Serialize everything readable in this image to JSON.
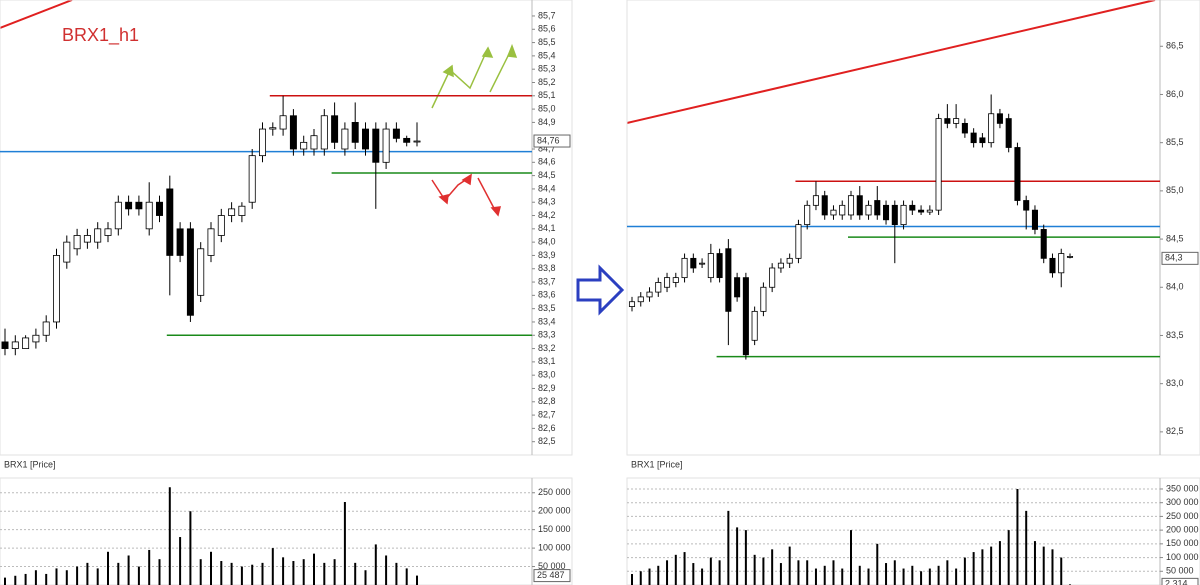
{
  "chart_data": [
    {
      "type": "candlestick",
      "title": "BRX1_h1",
      "label": "BRX1 [Price]",
      "open": [
        83.25,
        83.2,
        83.2,
        83.25,
        83.3,
        83.4,
        83.85,
        83.95,
        84.0,
        84.0,
        84.05,
        84.1,
        84.3,
        84.3,
        84.1,
        84.3,
        84.4,
        84.1,
        84.1,
        83.6,
        83.9,
        84.05,
        84.2,
        84.2,
        84.3,
        84.65,
        84.85,
        84.85,
        84.95,
        84.7,
        84.7,
        84.7,
        84.95,
        84.7,
        84.9,
        84.85,
        84.85,
        84.6,
        84.85,
        84.78,
        84.76
      ],
      "high": [
        83.35,
        83.3,
        83.3,
        83.35,
        83.45,
        83.95,
        84.05,
        84.1,
        84.1,
        84.15,
        84.15,
        84.35,
        84.35,
        84.35,
        84.45,
        84.35,
        84.5,
        84.15,
        84.15,
        84.0,
        84.15,
        84.25,
        84.3,
        84.3,
        84.7,
        84.9,
        84.9,
        85.1,
        85.0,
        84.8,
        84.85,
        85.0,
        85.05,
        84.9,
        85.05,
        84.9,
        84.9,
        84.9,
        84.9,
        84.8,
        84.9
      ],
      "low": [
        83.15,
        83.15,
        83.2,
        83.2,
        83.25,
        83.35,
        83.8,
        83.9,
        83.95,
        83.95,
        84.0,
        84.05,
        84.2,
        84.2,
        84.05,
        84.15,
        83.6,
        83.85,
        83.4,
        83.55,
        83.85,
        84.0,
        84.15,
        84.15,
        84.25,
        84.6,
        84.8,
        84.8,
        84.65,
        84.65,
        84.65,
        84.65,
        84.7,
        84.65,
        84.7,
        84.65,
        84.25,
        84.55,
        84.75,
        84.72,
        84.72
      ],
      "close": [
        83.2,
        83.25,
        83.28,
        83.3,
        83.4,
        83.9,
        84.0,
        84.05,
        84.05,
        84.1,
        84.1,
        84.3,
        84.25,
        84.25,
        84.3,
        84.2,
        83.9,
        83.9,
        83.45,
        83.95,
        84.1,
        84.2,
        84.25,
        84.27,
        84.65,
        84.85,
        84.86,
        84.95,
        84.7,
        84.75,
        84.8,
        84.95,
        84.75,
        84.85,
        84.75,
        84.7,
        84.6,
        84.85,
        84.78,
        84.75,
        84.76
      ],
      "ylim": [
        82.4,
        85.82
      ],
      "yticks": [
        {
          "value": 82.5,
          "label": "82,5"
        },
        {
          "value": 82.6,
          "label": "82,6"
        },
        {
          "value": 82.7,
          "label": "82,7"
        },
        {
          "value": 82.8,
          "label": "82,8"
        },
        {
          "value": 82.9,
          "label": "82,9"
        },
        {
          "value": 83.0,
          "label": "83,0"
        },
        {
          "value": 83.1,
          "label": "83,1"
        },
        {
          "value": 83.2,
          "label": "83,2"
        },
        {
          "value": 83.3,
          "label": "83,3"
        },
        {
          "value": 83.4,
          "label": "83,4"
        },
        {
          "value": 83.5,
          "label": "83,5"
        },
        {
          "value": 83.6,
          "label": "83,6"
        },
        {
          "value": 83.7,
          "label": "83,7"
        },
        {
          "value": 83.8,
          "label": "83,8"
        },
        {
          "value": 83.9,
          "label": "83,9"
        },
        {
          "value": 84.0,
          "label": "84,0"
        },
        {
          "value": 84.1,
          "label": "84,1"
        },
        {
          "value": 84.2,
          "label": "84,2"
        },
        {
          "value": 84.3,
          "label": "84,3"
        },
        {
          "value": 84.4,
          "label": "84,4"
        },
        {
          "value": 84.5,
          "label": "84,5"
        },
        {
          "value": 84.6,
          "label": "84,6"
        },
        {
          "value": 84.7,
          "label": "84,7"
        },
        {
          "value": 84.9,
          "label": "84,9"
        },
        {
          "value": 85.0,
          "label": "85,0"
        },
        {
          "value": 85.1,
          "label": "85,1"
        },
        {
          "value": 85.2,
          "label": "85,2"
        },
        {
          "value": 85.3,
          "label": "85,3"
        },
        {
          "value": 85.4,
          "label": "85,4"
        },
        {
          "value": 85.5,
          "label": "85,5"
        },
        {
          "value": 85.6,
          "label": "85,6"
        },
        {
          "value": 85.7,
          "label": "85,7"
        }
      ],
      "last": {
        "value": 84.76,
        "label": "84,76"
      },
      "levels": [
        {
          "value": 85.1,
          "color": "#cc1111",
          "from": 26
        },
        {
          "value": 84.68,
          "color": "#1f7fd6",
          "from": 0
        },
        {
          "value": 84.52,
          "color": "#1a8a1a",
          "from": 32
        },
        {
          "value": 83.3,
          "color": "#1a8a1a",
          "from": 16
        }
      ]
    },
    {
      "type": "bar",
      "color": "#000000",
      "values": [
        20000,
        25000,
        30000,
        40000,
        30000,
        45000,
        40000,
        50000,
        60000,
        45000,
        90000,
        60000,
        80000,
        50000,
        95000,
        70000,
        265000,
        130000,
        200000,
        70000,
        90000,
        65000,
        60000,
        50000,
        55000,
        60000,
        100000,
        75000,
        65000,
        70000,
        85000,
        60000,
        70000,
        225000,
        60000,
        40000,
        110000,
        80000,
        60000,
        45000,
        25487
      ],
      "ylim": [
        0,
        290000
      ],
      "yticks": [
        {
          "value": 50000,
          "label": "50 000"
        },
        {
          "value": 100000,
          "label": "100 000"
        },
        {
          "value": 150000,
          "label": "150 000"
        },
        {
          "value": 200000,
          "label": "200 000"
        },
        {
          "value": 250000,
          "label": "250 000"
        }
      ],
      "last": {
        "value": 25487,
        "label": "25 487"
      }
    },
    {
      "type": "candlestick",
      "label": "BRX1 [Price]",
      "open": [
        83.8,
        83.85,
        83.9,
        83.95,
        84.0,
        84.05,
        84.1,
        84.3,
        84.25,
        84.1,
        84.35,
        84.4,
        84.1,
        84.1,
        83.45,
        83.75,
        84.0,
        84.2,
        84.25,
        84.3,
        84.65,
        84.85,
        84.95,
        84.75,
        84.75,
        84.75,
        84.95,
        84.75,
        84.9,
        84.85,
        84.85,
        84.65,
        84.85,
        84.8,
        84.78,
        84.8,
        85.75,
        85.7,
        85.7,
        85.6,
        85.55,
        85.5,
        85.8,
        85.75,
        85.45,
        84.9,
        84.8,
        84.6,
        84.3,
        84.15,
        84.32
      ],
      "high": [
        83.9,
        83.95,
        84.0,
        84.1,
        84.15,
        84.15,
        84.35,
        84.35,
        84.3,
        84.45,
        84.4,
        84.5,
        84.15,
        84.15,
        83.8,
        84.05,
        84.25,
        84.3,
        84.35,
        84.7,
        84.9,
        85.1,
        85.0,
        84.85,
        84.9,
        85.0,
        85.05,
        84.9,
        85.05,
        84.9,
        84.9,
        84.9,
        84.9,
        84.85,
        84.85,
        85.8,
        85.9,
        85.9,
        85.75,
        85.65,
        85.6,
        86.0,
        85.85,
        85.8,
        85.5,
        84.95,
        84.85,
        84.65,
        84.35,
        84.4,
        84.35
      ],
      "low": [
        83.75,
        83.8,
        83.85,
        83.9,
        83.95,
        84.0,
        84.05,
        84.15,
        84.2,
        84.05,
        84.05,
        83.4,
        83.85,
        83.25,
        83.4,
        83.7,
        83.95,
        84.15,
        84.2,
        84.25,
        84.6,
        84.8,
        84.7,
        84.7,
        84.7,
        84.7,
        84.7,
        84.7,
        84.7,
        84.65,
        84.25,
        84.6,
        84.75,
        84.75,
        84.75,
        84.75,
        85.65,
        85.65,
        85.55,
        85.45,
        85.45,
        85.45,
        85.65,
        85.4,
        84.85,
        84.6,
        84.55,
        84.25,
        84.1,
        84.0,
        84.3
      ],
      "close": [
        83.85,
        83.9,
        83.95,
        84.05,
        84.1,
        84.1,
        84.3,
        84.2,
        84.25,
        84.35,
        84.1,
        83.75,
        83.9,
        83.3,
        83.75,
        84.0,
        84.2,
        84.25,
        84.3,
        84.65,
        84.85,
        84.95,
        84.75,
        84.8,
        84.85,
        84.95,
        84.75,
        84.85,
        84.75,
        84.7,
        84.65,
        84.85,
        84.8,
        84.78,
        84.8,
        85.75,
        85.7,
        85.75,
        85.6,
        85.5,
        85.5,
        85.8,
        85.7,
        85.45,
        84.9,
        84.8,
        84.6,
        84.3,
        84.15,
        84.35,
        84.32
      ],
      "ylim": [
        82.26,
        86.98
      ],
      "yticks": [
        {
          "value": 82.5,
          "label": "82,5"
        },
        {
          "value": 83.0,
          "label": "83,0"
        },
        {
          "value": 83.5,
          "label": "83,5"
        },
        {
          "value": 84.0,
          "label": "84,0"
        },
        {
          "value": 84.5,
          "label": "84,5"
        },
        {
          "value": 85.0,
          "label": "85,0"
        },
        {
          "value": 85.5,
          "label": "85,5"
        },
        {
          "value": 86.0,
          "label": "86,0"
        },
        {
          "value": 86.5,
          "label": "86,5"
        }
      ],
      "last": {
        "value": 84.3,
        "label": "84,3"
      },
      "levels": [
        {
          "value": 85.1,
          "color": "#cc1111",
          "from": 19
        },
        {
          "value": 84.63,
          "color": "#1f7fd6",
          "from": 0
        },
        {
          "value": 84.52,
          "color": "#1a8a1a",
          "from": 25
        },
        {
          "value": 83.28,
          "color": "#1a8a1a",
          "from": 10
        }
      ]
    },
    {
      "type": "bar",
      "color": "#000000",
      "values": [
        40000,
        50000,
        60000,
        70000,
        90000,
        110000,
        120000,
        80000,
        60000,
        100000,
        90000,
        270000,
        210000,
        200000,
        110000,
        100000,
        130000,
        80000,
        140000,
        90000,
        90000,
        60000,
        70000,
        90000,
        60000,
        200000,
        70000,
        60000,
        150000,
        80000,
        90000,
        60000,
        70000,
        50000,
        60000,
        70000,
        90000,
        60000,
        100000,
        120000,
        130000,
        140000,
        160000,
        200000,
        350000,
        270000,
        160000,
        140000,
        130000,
        100000,
        2314
      ],
      "ylim": [
        0,
        390000
      ],
      "yticks": [
        {
          "value": 50000,
          "label": "50 000"
        },
        {
          "value": 100000,
          "label": "100 000"
        },
        {
          "value": 150000,
          "label": "150 000"
        },
        {
          "value": 200000,
          "label": "200 000"
        },
        {
          "value": 250000,
          "label": "250 000"
        },
        {
          "value": 300000,
          "label": "300 000"
        },
        {
          "value": 350000,
          "label": "350 000"
        }
      ],
      "last": {
        "value": 2314,
        "label": "2 314"
      }
    }
  ]
}
